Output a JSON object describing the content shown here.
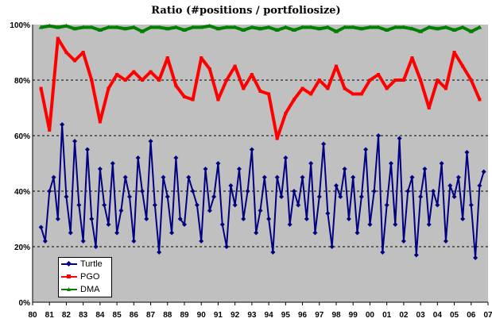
{
  "chart_data": {
    "type": "line",
    "title": "Ratio (#positions / portfoliosize)",
    "xlabel": "",
    "ylabel": "",
    "xlim": [
      1980,
      2007
    ],
    "ylim": [
      0,
      100
    ],
    "grid": true,
    "legend_position": "bottom-left",
    "plot_background": "#c0c0c0",
    "y_ticks": [
      "0%",
      "20%",
      "40%",
      "60%",
      "80%",
      "100%"
    ],
    "y_tick_values": [
      0,
      20,
      40,
      60,
      80,
      100
    ],
    "x_ticks": [
      "80",
      "81",
      "82",
      "83",
      "84",
      "85",
      "86",
      "87",
      "88",
      "89",
      "90",
      "91",
      "92",
      "93",
      "94",
      "95",
      "96",
      "97",
      "98",
      "99",
      "00",
      "01",
      "02",
      "03",
      "04",
      "05",
      "06",
      "07"
    ],
    "series": [
      {
        "name": "Turtle",
        "color": "#000080",
        "marker": "diamond",
        "x_start": 1980.5,
        "x_step": 0.25,
        "values": [
          27,
          22,
          40,
          45,
          30,
          64,
          38,
          25,
          58,
          35,
          22,
          55,
          30,
          20,
          48,
          35,
          28,
          50,
          25,
          33,
          45,
          38,
          22,
          52,
          40,
          30,
          58,
          35,
          18,
          45,
          38,
          25,
          52,
          30,
          28,
          45,
          40,
          35,
          22,
          48,
          33,
          38,
          50,
          28,
          20,
          42,
          35,
          48,
          30,
          40,
          55,
          25,
          33,
          45,
          30,
          18,
          45,
          38,
          52,
          28,
          40,
          35,
          45,
          30,
          50,
          25,
          38,
          57,
          32,
          20,
          42,
          38,
          48,
          30,
          45,
          25,
          38,
          55,
          28,
          40,
          60,
          18,
          35,
          50,
          28,
          59,
          22,
          40,
          45,
          17,
          38,
          48,
          28,
          40,
          35,
          50,
          22,
          42,
          38,
          45,
          30,
          54,
          35,
          16,
          42,
          47
        ]
      },
      {
        "name": "PGO",
        "color": "#ff0000",
        "marker": "square",
        "x_start": 1980.5,
        "x_step": 0.5,
        "values": [
          77,
          62,
          95,
          90,
          87,
          90,
          80,
          65,
          77,
          82,
          80,
          83,
          80,
          83,
          80,
          88,
          78,
          74,
          73,
          88,
          84,
          73,
          80,
          85,
          77,
          82,
          76,
          75,
          59,
          68,
          73,
          77,
          75,
          80,
          77,
          85,
          77,
          75,
          75,
          80,
          82,
          77,
          80,
          80,
          88,
          80,
          70,
          80,
          77,
          90,
          85,
          80,
          73
        ]
      },
      {
        "name": "DMA",
        "color": "#008000",
        "marker": "triangle",
        "x_start": 1980.5,
        "x_step": 0.5,
        "values": [
          99,
          99.5,
          99,
          99.5,
          98.5,
          99,
          99,
          98,
          99,
          99,
          98.5,
          99,
          97.5,
          99,
          99,
          98.5,
          99,
          98,
          99,
          99,
          99.5,
          98.5,
          99,
          99,
          98,
          99,
          98.5,
          99,
          98,
          99,
          98,
          99,
          99,
          98.5,
          99,
          97.5,
          99,
          99,
          98.5,
          99,
          99,
          98,
          99,
          99,
          98.5,
          97.5,
          99,
          98.5,
          99,
          98,
          99,
          97.5,
          99
        ]
      }
    ]
  }
}
